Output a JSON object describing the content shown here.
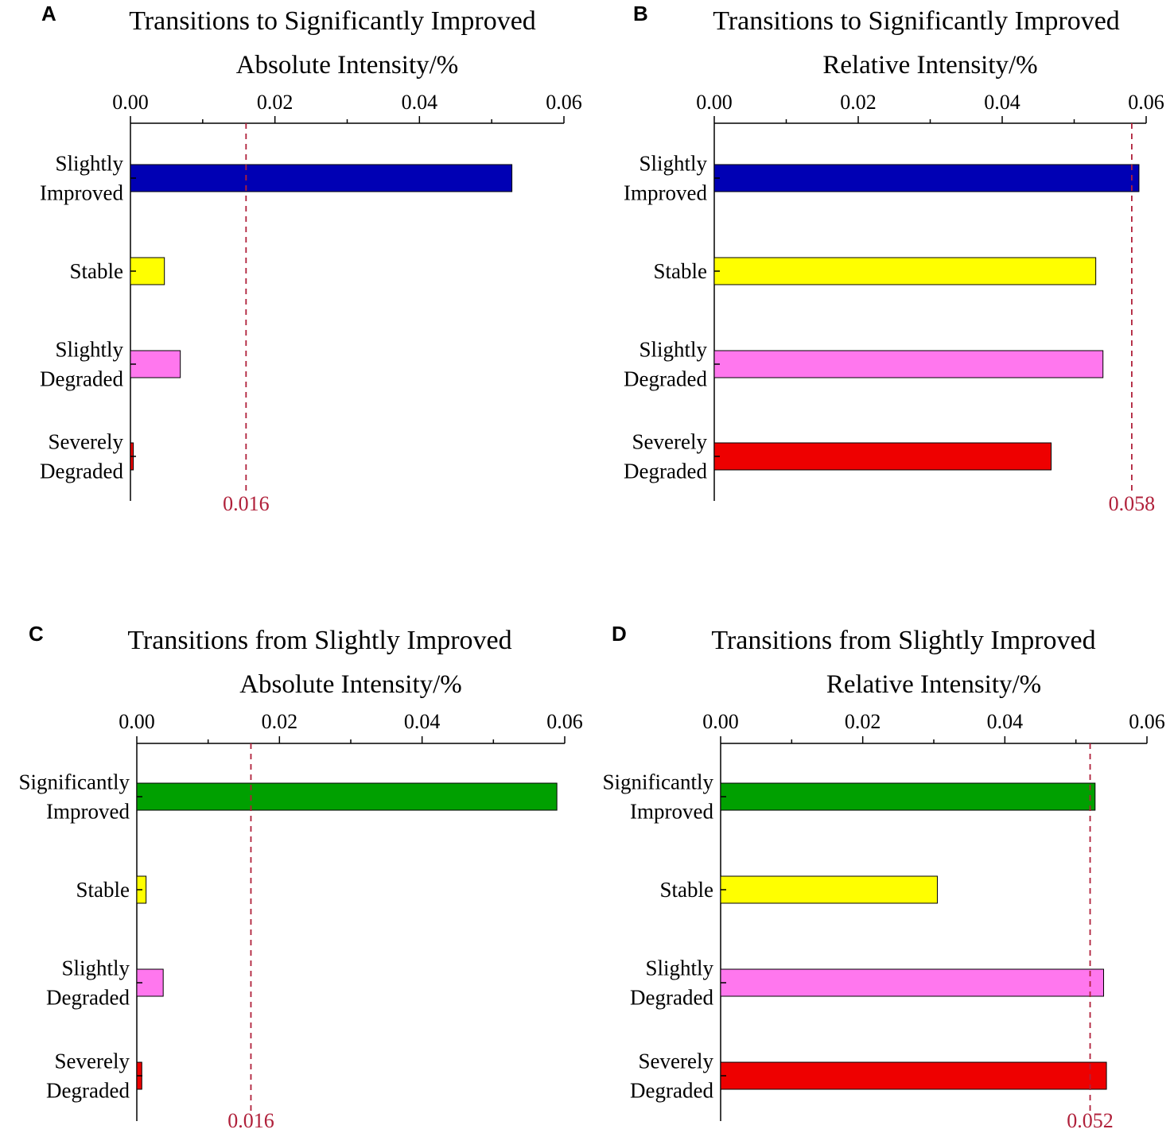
{
  "chart_data": [
    {
      "type": "bar",
      "orientation": "horizontal",
      "panel": "A",
      "title": "Transitions to Significantly Improved",
      "xlabel": "Absolute Intensity/%",
      "xlim": [
        0,
        0.06
      ],
      "xticks": [
        "0.00",
        "0.02",
        "0.04",
        "0.06"
      ],
      "categories": [
        {
          "lines": [
            "Slightly",
            "Improved"
          ],
          "value": 0.0528,
          "color": "#0000b4"
        },
        {
          "lines": [
            "Stable"
          ],
          "value": 0.0047,
          "color": "#ffff00"
        },
        {
          "lines": [
            "Slightly",
            "Degraded"
          ],
          "value": 0.0069,
          "color": "#ff77ee"
        },
        {
          "lines": [
            "Severely",
            "Degraded"
          ],
          "value": 0.0004,
          "color": "#ee0000"
        }
      ],
      "reference": {
        "value": 0.016,
        "label": "0.016"
      }
    },
    {
      "type": "bar",
      "orientation": "horizontal",
      "panel": "B",
      "title": "Transitions to Significantly Improved",
      "xlabel": "Relative Intensity/%",
      "xlim": [
        0,
        0.06
      ],
      "xticks": [
        "0.00",
        "0.02",
        "0.04",
        "0.06"
      ],
      "categories": [
        {
          "lines": [
            "Slightly",
            "Improved"
          ],
          "value": 0.059,
          "color": "#0000b4"
        },
        {
          "lines": [
            "Stable"
          ],
          "value": 0.053,
          "color": "#ffff00"
        },
        {
          "lines": [
            "Slightly",
            "Degraded"
          ],
          "value": 0.054,
          "color": "#ff77ee"
        },
        {
          "lines": [
            "Severely",
            "Degraded"
          ],
          "value": 0.0468,
          "color": "#ee0000"
        }
      ],
      "reference": {
        "value": 0.058,
        "label": "0.058"
      }
    },
    {
      "type": "bar",
      "orientation": "horizontal",
      "panel": "C",
      "title": "Transitions from Slightly Improved",
      "xlabel": "Absolute Intensity/%",
      "xlim": [
        0,
        0.06
      ],
      "xticks": [
        "0.00",
        "0.02",
        "0.04",
        "0.06"
      ],
      "categories": [
        {
          "lines": [
            "Significantly",
            "Improved"
          ],
          "value": 0.0589,
          "color": "#00a000"
        },
        {
          "lines": [
            "Stable"
          ],
          "value": 0.0013,
          "color": "#ffff00"
        },
        {
          "lines": [
            "Slightly",
            "Degraded"
          ],
          "value": 0.0037,
          "color": "#ff77ee"
        },
        {
          "lines": [
            "Severely",
            "Degraded"
          ],
          "value": 0.0007,
          "color": "#ee0000"
        }
      ],
      "reference": {
        "value": 0.016,
        "label": "0.016"
      }
    },
    {
      "type": "bar",
      "orientation": "horizontal",
      "panel": "D",
      "title": "Transitions from Slightly Improved",
      "xlabel": "Relative Intensity/%",
      "xlim": [
        0,
        0.06
      ],
      "xticks": [
        "0.00",
        "0.02",
        "0.04",
        "0.06"
      ],
      "categories": [
        {
          "lines": [
            "Significantly",
            "Improved"
          ],
          "value": 0.0527,
          "color": "#00a000"
        },
        {
          "lines": [
            "Stable"
          ],
          "value": 0.0305,
          "color": "#ffff00"
        },
        {
          "lines": [
            "Slightly",
            "Degraded"
          ],
          "value": 0.0539,
          "color": "#ff77ee"
        },
        {
          "lines": [
            "Severely",
            "Degraded"
          ],
          "value": 0.0543,
          "color": "#ee0000"
        }
      ],
      "reference": {
        "value": 0.052,
        "label": "0.052"
      }
    }
  ]
}
